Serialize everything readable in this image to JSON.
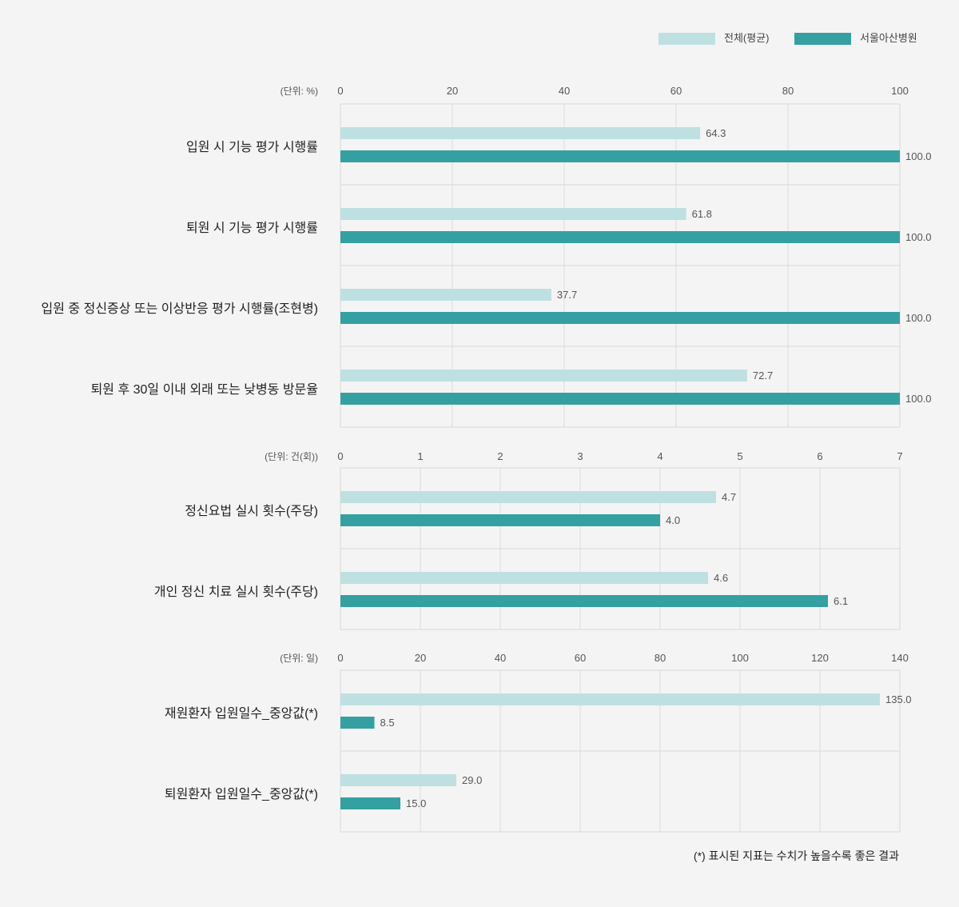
{
  "legend": {
    "items": [
      {
        "label": "전체(평균)",
        "color": "#bfe0e1"
      },
      {
        "label": "서울아산병원",
        "color": "#35a0a1"
      }
    ]
  },
  "footnote": "(*) 표시된 지표는 수치가 높을수록 좋은 결과",
  "chart_data": [
    {
      "type": "bar",
      "orientation": "horizontal",
      "unit_label": "(단위: %)",
      "xlim": [
        0,
        100
      ],
      "ticks": [
        0,
        20,
        40,
        60,
        80,
        100
      ],
      "grid": true,
      "legend_position": "top-right",
      "categories": [
        "입원 시 기능 평가 시행률",
        "퇴원 시 기능 평가 시행률",
        "입원 중 정신증상 또는 이상반응 평가 시행률(조현병)",
        "퇴원 후 30일 이내 외래 또는 낮병동 방문율"
      ],
      "series": [
        {
          "name": "전체(평균)",
          "values": [
            64.3,
            61.8,
            37.7,
            72.7
          ],
          "labels": [
            "64.3",
            "61.8",
            "37.7",
            "72.7"
          ]
        },
        {
          "name": "서울아산병원",
          "values": [
            100.0,
            100.0,
            100.0,
            100.0
          ],
          "labels": [
            "100.0",
            "100.0",
            "100.0",
            "100.0"
          ]
        }
      ]
    },
    {
      "type": "bar",
      "orientation": "horizontal",
      "unit_label": "(단위: 건(회))",
      "xlim": [
        0,
        7
      ],
      "ticks": [
        0,
        1,
        2,
        3,
        4,
        5,
        6,
        7
      ],
      "grid": true,
      "categories": [
        "정신요법 실시 횟수(주당)",
        "개인 정신 치료 실시 횟수(주당)"
      ],
      "series": [
        {
          "name": "전체(평균)",
          "values": [
            4.7,
            4.6
          ],
          "labels": [
            "4.7",
            "4.6"
          ]
        },
        {
          "name": "서울아산병원",
          "values": [
            4.0,
            6.1
          ],
          "labels": [
            "4.0",
            "6.1"
          ]
        }
      ]
    },
    {
      "type": "bar",
      "orientation": "horizontal",
      "unit_label": "(단위: 일)",
      "xlim": [
        0,
        140
      ],
      "ticks": [
        0,
        20,
        40,
        60,
        80,
        100,
        120,
        140
      ],
      "grid": true,
      "categories": [
        "재원환자 입원일수_중앙값(*)",
        "퇴원환자 입원일수_중앙값(*)"
      ],
      "series": [
        {
          "name": "전체(평균)",
          "values": [
            135.0,
            29.0
          ],
          "labels": [
            "135.0",
            "29.0"
          ]
        },
        {
          "name": "서울아산병원",
          "values": [
            8.5,
            15.0
          ],
          "labels": [
            "8.5",
            "15.0"
          ]
        }
      ]
    }
  ]
}
